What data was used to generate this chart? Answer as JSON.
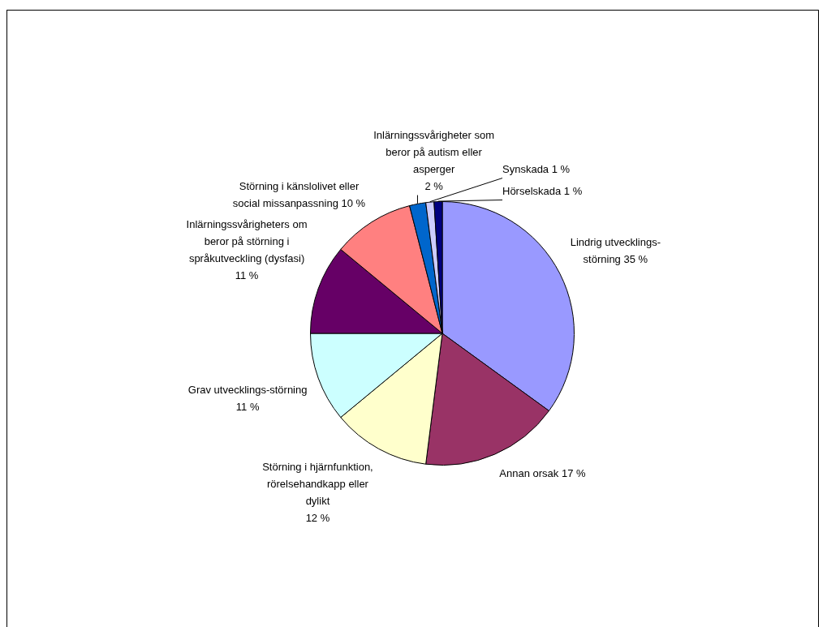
{
  "chart_data": {
    "type": "pie",
    "categories": [
      "Lindrig utvecklings-störning",
      "Annan orsak",
      "Störning i hjärnfunktion, rörelsehandkapp eller dylikt",
      "Grav utvecklings-störning",
      "Inlärningssvårigheters om beror på störning i språkutveckling (dysfasi)",
      "Störning i känslolivet eller social missanpassning",
      "Inlärningssvårigheter som beror på autism eller asperger",
      "Synskada",
      "Hörselskada"
    ],
    "values": [
      35,
      17,
      12,
      11,
      11,
      10,
      2,
      1,
      1
    ],
    "value_labels": [
      "35 %",
      "17 %",
      "12 %",
      "11 %",
      "11 %",
      "10 %",
      "2 %",
      "1 %",
      "1 %"
    ],
    "colors": [
      "#9999ff",
      "#993366",
      "#ffffcc",
      "#ccffff",
      "#660066",
      "#ff8080",
      "#0066cc",
      "#ccccff",
      "#000080"
    ],
    "legend": false
  }
}
